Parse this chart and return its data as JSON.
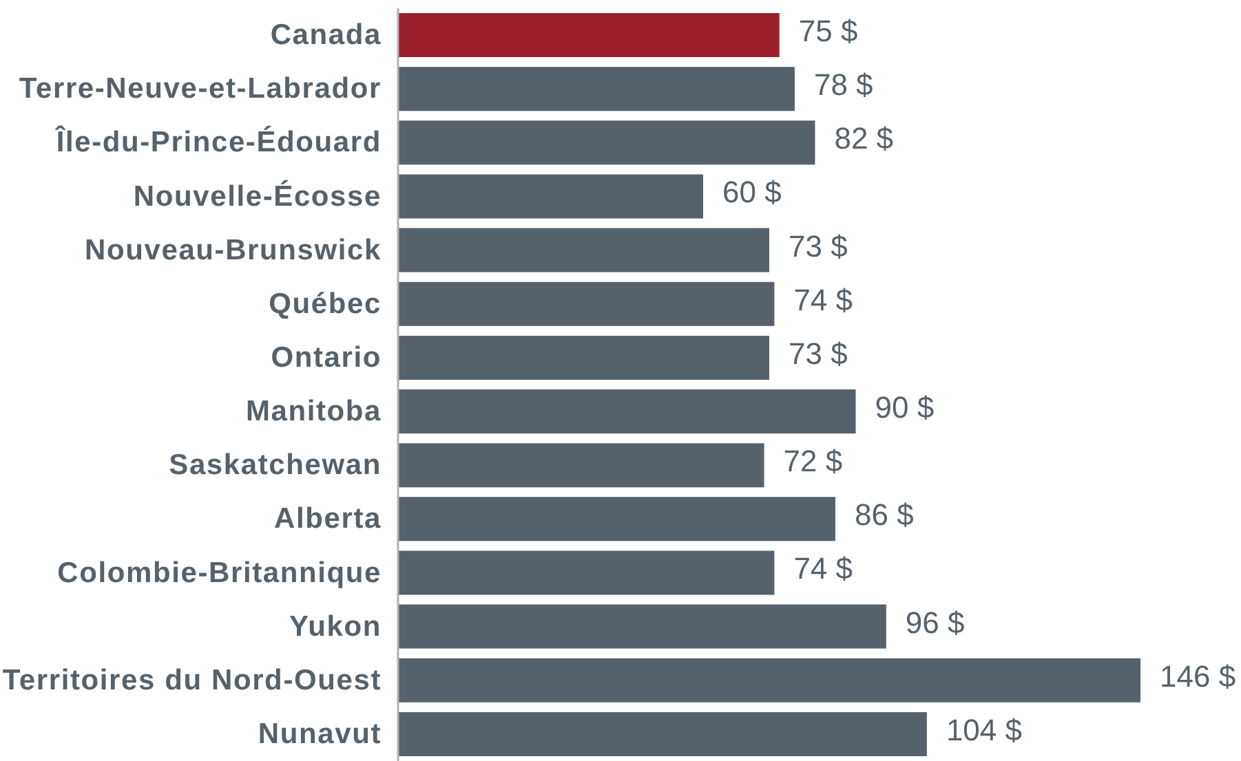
{
  "chart_data": {
    "type": "bar",
    "orientation": "horizontal",
    "categories": [
      "Canada",
      "Terre-Neuve-et-Labrador",
      "Île-du-Prince-Édouard",
      "Nouvelle-Écosse",
      "Nouveau-Brunswick",
      "Québec",
      "Ontario",
      "Manitoba",
      "Saskatchewan",
      "Alberta",
      "Colombie-Britannique",
      "Yukon",
      "Territoires du Nord-Ouest",
      "Nunavut"
    ],
    "values": [
      75,
      78,
      82,
      60,
      73,
      74,
      73,
      90,
      72,
      86,
      74,
      96,
      146,
      104
    ],
    "colors": [
      "#9b1f2b",
      "#56626b",
      "#56626b",
      "#56626b",
      "#56626b",
      "#56626b",
      "#56626b",
      "#56626b",
      "#56626b",
      "#56626b",
      "#56626b",
      "#56626b",
      "#56626b",
      "#56626b"
    ],
    "value_labels": [
      "75 $",
      "78 $",
      "82 $",
      "60 $",
      "73 $",
      "74 $",
      "73 $",
      "90 $",
      "72 $",
      "86 $",
      "74 $",
      "96 $",
      "146 $",
      "104 $"
    ]
  }
}
